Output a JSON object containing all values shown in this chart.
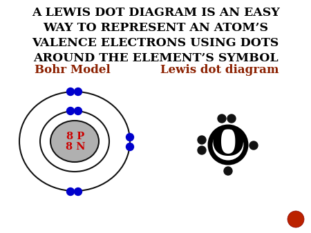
{
  "title_lines": [
    "A LEWIS DOT DIAGRAM IS AN EASY",
    "WAY TO REPRESENT AN ATOM’S",
    "VALENCE ELECTRONS USING DOTS",
    "AROUND THE ELEMENT’S SYMBOL"
  ],
  "bohr_label": "Bohr Model",
  "lewis_label": "Lewis dot diagram",
  "label_color": "#8B2000",
  "nucleus_text_p": "8 P",
  "nucleus_text_n": "8 N",
  "nucleus_text_color": "#cc0000",
  "bg_color": "#ffffff",
  "electron_color_bohr": "#0000cc",
  "electron_color_lewis": "#111111",
  "nucleus_fill": "#b0b0b0",
  "nucleus_edge": "#111111",
  "title_color": "#000000",
  "title_fontsize": 12.5,
  "label_fontsize": 12,
  "red_dot_color": "#bb2200"
}
